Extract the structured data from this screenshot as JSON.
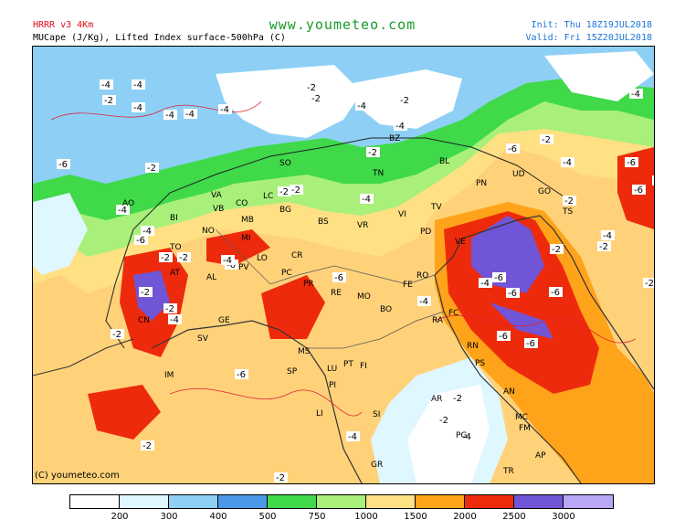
{
  "header": {
    "model": "HRRR v3 4Km",
    "product": "MUCape (J/Kg), Lifted Index surface-500hPa (C)",
    "site": "www.youmeteo.com",
    "init": "Init: Thu 18Z19JUL2018",
    "valid": "Valid: Fri 15Z20JUL2018"
  },
  "copyright": "(C) youmeteo.com",
  "legend": {
    "colors": [
      "#ffffff",
      "#dff7ff",
      "#8ed0f5",
      "#4b97e8",
      "#3fd94a",
      "#a8f07a",
      "#ffe083",
      "#ffa31a",
      "#ee2a0c",
      "#7055d6",
      "#b9a6f7"
    ],
    "labels": [
      "200",
      "300",
      "400",
      "500",
      "750",
      "1000",
      "1500",
      "2000",
      "2500",
      "3000"
    ]
  },
  "map": {
    "lifted_index_labels": [
      {
        "text": "-4"
      },
      {
        "text": "-4"
      },
      {
        "text": "-2"
      },
      {
        "text": "-4"
      },
      {
        "text": "-4"
      },
      {
        "text": "-4"
      },
      {
        "text": "-4"
      },
      {
        "text": "-2"
      },
      {
        "text": "-2"
      },
      {
        "text": "-4"
      },
      {
        "text": "-2"
      },
      {
        "text": "-4"
      },
      {
        "text": "-6"
      },
      {
        "text": "-4"
      },
      {
        "text": "-6"
      },
      {
        "text": "-2"
      },
      {
        "text": "-4"
      },
      {
        "text": "-2"
      },
      {
        "text": "-2"
      },
      {
        "text": "-4"
      },
      {
        "text": "-4"
      },
      {
        "text": "-2"
      },
      {
        "text": "-2"
      },
      {
        "text": "-6"
      },
      {
        "text": "-6"
      },
      {
        "text": "-6"
      },
      {
        "text": "-6"
      },
      {
        "text": "-2"
      },
      {
        "text": "-6"
      },
      {
        "text": "-6"
      },
      {
        "text": "-4"
      },
      {
        "text": "-4"
      },
      {
        "text": "-6"
      },
      {
        "text": "-6"
      },
      {
        "text": "-2"
      },
      {
        "text": "-4"
      },
      {
        "text": "-2"
      },
      {
        "text": "-4"
      },
      {
        "text": "-6"
      },
      {
        "text": "-6"
      },
      {
        "text": "-2"
      },
      {
        "text": "-4"
      },
      {
        "text": "-4"
      },
      {
        "text": "-2"
      },
      {
        "text": "-2"
      },
      {
        "text": "-2"
      },
      {
        "text": "-4"
      },
      {
        "text": "-4"
      },
      {
        "text": "-2"
      },
      {
        "text": "-2"
      },
      {
        "text": "-6"
      },
      {
        "text": "-2"
      },
      {
        "text": "-2"
      },
      {
        "text": "-2"
      },
      {
        "text": "-4"
      },
      {
        "text": "-2"
      }
    ],
    "places": [
      "BZ",
      "TN",
      "VR",
      "VI",
      "TV",
      "PD",
      "VE",
      "PN",
      "UD",
      "GO",
      "TS",
      "BS",
      "BG",
      "MI",
      "CO",
      "LC",
      "SO",
      "VA",
      "NO",
      "BI",
      "AO",
      "TO",
      "AT",
      "AL",
      "CN",
      "SV",
      "IM",
      "GE",
      "PV",
      "LO",
      "CR",
      "PC",
      "PR",
      "RE",
      "MO",
      "BO",
      "FE",
      "RO",
      "RA",
      "FC",
      "RN",
      "PS",
      "AN",
      "MC",
      "FM",
      "AP",
      "AR",
      "SI",
      "GR",
      "LU",
      "PT",
      "FI",
      "PI",
      "LI",
      "MS",
      "SP",
      "PG",
      "TR",
      "BL",
      "VB",
      "MB"
    ]
  }
}
